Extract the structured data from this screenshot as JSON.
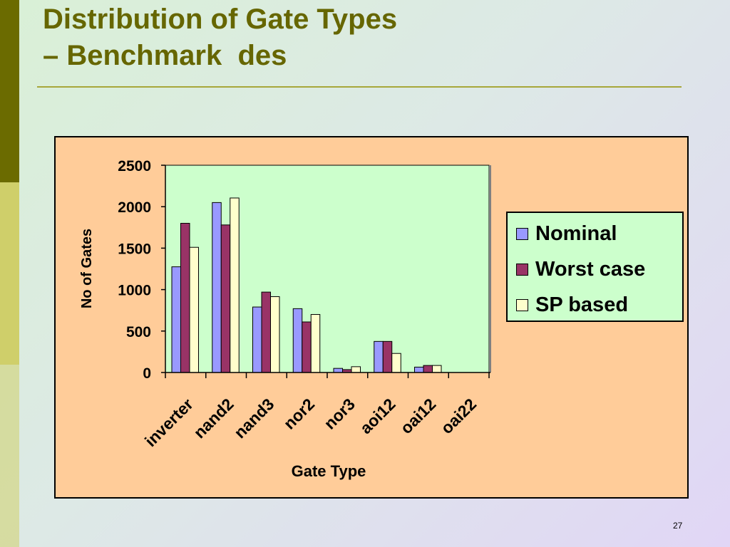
{
  "slide": {
    "title_line1": "Distribution of Gate Types",
    "title_line2": "– Benchmark  des",
    "page_number": "27"
  },
  "colors": {
    "title": "#666600",
    "chart_background": "#ffcc99",
    "plot_background": "#ccffcc",
    "series": [
      "#9999ff",
      "#993366",
      "#ffffcc"
    ]
  },
  "chart_data": {
    "type": "bar",
    "xlabel": "Gate Type",
    "ylabel": "No of Gates",
    "ylim": [
      0,
      2500
    ],
    "yticks": [
      "0",
      "500",
      "1000",
      "1500",
      "2000",
      "2500"
    ],
    "categories": [
      "inverter",
      "nand2",
      "nand3",
      "nor2",
      "nor3",
      "aoi12",
      "oai12",
      "oai22"
    ],
    "series": [
      {
        "name": "Nominal",
        "values": [
          1275,
          2050,
          790,
          770,
          50,
          375,
          65,
          0
        ]
      },
      {
        "name": "Worst case",
        "values": [
          1800,
          1780,
          970,
          610,
          35,
          375,
          85,
          0
        ]
      },
      {
        "name": "SP based",
        "values": [
          1510,
          2105,
          915,
          700,
          70,
          230,
          85,
          0
        ]
      }
    ],
    "legend_position": "right",
    "grid": false
  }
}
